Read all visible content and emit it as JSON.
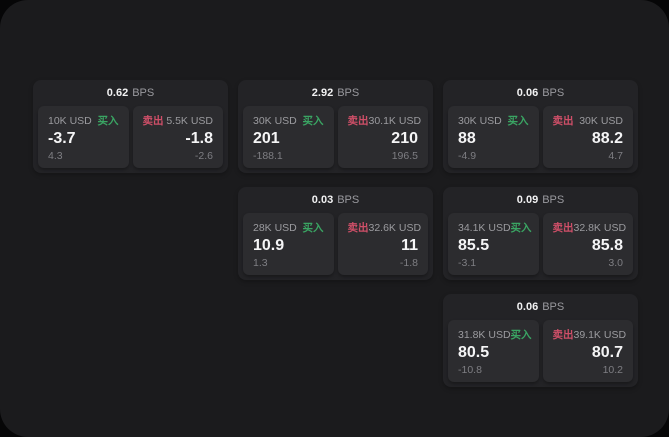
{
  "labels": {
    "bps_suffix": "BPS",
    "buy": "买入",
    "sell": "卖出"
  },
  "colors": {
    "buy_label": "#3aa563",
    "sell_label": "#cf4f68",
    "panel_bg": "#1b1b1d",
    "card_bg": "#232326",
    "quote_bg": "#2c2c2f"
  },
  "cards": [
    {
      "row": 1,
      "col": 1,
      "bps": "0.62",
      "buy": {
        "size": "10K USD",
        "price": "-3.7",
        "delta": "4.3"
      },
      "sell": {
        "size": "5.5K USD",
        "price": "-1.8",
        "delta": "-2.6"
      }
    },
    {
      "row": 1,
      "col": 2,
      "bps": "2.92",
      "buy": {
        "size": "30K USD",
        "price": "201",
        "delta": "-188.1"
      },
      "sell": {
        "size": "30.1K USD",
        "price": "210",
        "delta": "196.5"
      }
    },
    {
      "row": 1,
      "col": 3,
      "bps": "0.06",
      "buy": {
        "size": "30K USD",
        "price": "88",
        "delta": "-4.9"
      },
      "sell": {
        "size": "30K USD",
        "price": "88.2",
        "delta": "4.7"
      }
    },
    {
      "row": 2,
      "col": 2,
      "bps": "0.03",
      "buy": {
        "size": "28K USD",
        "price": "10.9",
        "delta": "1.3"
      },
      "sell": {
        "size": "32.6K USD",
        "price": "11",
        "delta": "-1.8"
      }
    },
    {
      "row": 2,
      "col": 3,
      "bps": "0.09",
      "buy": {
        "size": "34.1K USD",
        "price": "85.5",
        "delta": "-3.1"
      },
      "sell": {
        "size": "32.8K USD",
        "price": "85.8",
        "delta": "3.0"
      }
    },
    {
      "row": 3,
      "col": 3,
      "bps": "0.06",
      "buy": {
        "size": "31.8K USD",
        "price": "80.5",
        "delta": "-10.8"
      },
      "sell": {
        "size": "39.1K USD",
        "price": "80.7",
        "delta": "10.2"
      }
    }
  ]
}
